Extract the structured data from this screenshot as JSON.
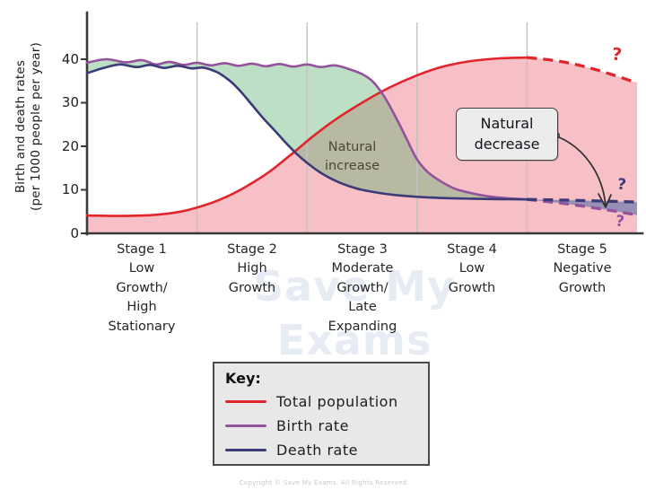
{
  "colors": {
    "total-population": "#e2242c",
    "birth-rate": "#94519c",
    "death-rate": "#3b3b77",
    "pink-fill": "rgba(235,90,105,0.38)",
    "green-fill": "rgba(90,175,110,0.40)",
    "wedge-fill": "rgba(125,130,178,0.80)",
    "gridline": "#c2c2c2",
    "axis": "#3a3a3a",
    "annotation-box-bg": "#ececec",
    "annotation-box-border": "#3f3f3f",
    "natural-increase-text": "#4c4636",
    "watermark": "rgba(195,208,228,0.40)",
    "key-bg": "#e8e8e8",
    "key-border": "#4a4a4a",
    "copyright": "#c9c9c9"
  },
  "chart_data": {
    "type": "line",
    "ylabel": "Birth and death rates\n(per 1000 people per year)",
    "y_tick_labels": [
      "40",
      "30",
      "20",
      "10",
      "0"
    ],
    "y_tick_values": [
      0,
      10,
      20,
      30,
      40
    ],
    "ylim": [
      0,
      45
    ],
    "x_axis": "time (5 demographic transition stages, equal widths, x given as fraction 0-1 of plot width)",
    "stage_boundaries": [
      0.2,
      0.4,
      0.6,
      0.8
    ],
    "grid": "vertical stage-divider lines only",
    "series": {
      "total_population": {
        "name": "Total population",
        "solid": [
          [
            0,
            4.1
          ],
          [
            0.06,
            4.0
          ],
          [
            0.12,
            4.2
          ],
          [
            0.17,
            5.0
          ],
          [
            0.21,
            6.3
          ],
          [
            0.25,
            8.2
          ],
          [
            0.29,
            10.8
          ],
          [
            0.33,
            14.0
          ],
          [
            0.37,
            18.0
          ],
          [
            0.41,
            22.2
          ],
          [
            0.45,
            26.0
          ],
          [
            0.5,
            30.0
          ],
          [
            0.55,
            33.5
          ],
          [
            0.6,
            36.3
          ],
          [
            0.65,
            38.4
          ],
          [
            0.7,
            39.6
          ],
          [
            0.75,
            40.2
          ],
          [
            0.8,
            40.4
          ]
        ],
        "dashed": [
          [
            0.8,
            40.4
          ],
          [
            0.86,
            39.5
          ],
          [
            0.92,
            37.8
          ],
          [
            1.0,
            34.6
          ]
        ]
      },
      "birth_rate": {
        "name": "Birth rate",
        "solid": [
          [
            0,
            39.2
          ],
          [
            0.035,
            40.0
          ],
          [
            0.07,
            39.3
          ],
          [
            0.1,
            39.8
          ],
          [
            0.125,
            38.8
          ],
          [
            0.15,
            39.4
          ],
          [
            0.175,
            38.7
          ],
          [
            0.2,
            39.2
          ],
          [
            0.225,
            38.6
          ],
          [
            0.25,
            39.1
          ],
          [
            0.275,
            38.5
          ],
          [
            0.3,
            39.0
          ],
          [
            0.325,
            38.4
          ],
          [
            0.35,
            38.9
          ],
          [
            0.375,
            38.3
          ],
          [
            0.4,
            38.8
          ],
          [
            0.425,
            38.2
          ],
          [
            0.45,
            38.6
          ],
          [
            0.475,
            37.8
          ],
          [
            0.5,
            36.6
          ],
          [
            0.52,
            34.8
          ],
          [
            0.54,
            31.5
          ],
          [
            0.56,
            27.0
          ],
          [
            0.58,
            22.0
          ],
          [
            0.6,
            17.0
          ],
          [
            0.62,
            14.0
          ],
          [
            0.645,
            11.8
          ],
          [
            0.67,
            10.2
          ],
          [
            0.7,
            9.2
          ],
          [
            0.73,
            8.5
          ],
          [
            0.76,
            8.1
          ],
          [
            0.8,
            7.8
          ]
        ],
        "dashed": [
          [
            0.8,
            7.8
          ],
          [
            0.87,
            6.8
          ],
          [
            0.94,
            5.5
          ],
          [
            1.0,
            4.2
          ]
        ]
      },
      "death_rate": {
        "name": "Death rate",
        "solid": [
          [
            0,
            36.8
          ],
          [
            0.03,
            38.0
          ],
          [
            0.06,
            38.8
          ],
          [
            0.09,
            38.2
          ],
          [
            0.115,
            38.7
          ],
          [
            0.14,
            38.0
          ],
          [
            0.165,
            38.5
          ],
          [
            0.19,
            37.9
          ],
          [
            0.21,
            38.1
          ],
          [
            0.225,
            37.6
          ],
          [
            0.24,
            36.8
          ],
          [
            0.26,
            35.0
          ],
          [
            0.28,
            32.5
          ],
          [
            0.3,
            29.5
          ],
          [
            0.32,
            26.5
          ],
          [
            0.34,
            23.8
          ],
          [
            0.36,
            21.0
          ],
          [
            0.38,
            18.4
          ],
          [
            0.4,
            16.2
          ],
          [
            0.42,
            14.3
          ],
          [
            0.44,
            12.8
          ],
          [
            0.46,
            11.6
          ],
          [
            0.48,
            10.7
          ],
          [
            0.5,
            10.0
          ],
          [
            0.53,
            9.3
          ],
          [
            0.56,
            8.8
          ],
          [
            0.6,
            8.4
          ],
          [
            0.65,
            8.1
          ],
          [
            0.7,
            7.95
          ],
          [
            0.75,
            7.85
          ],
          [
            0.8,
            7.8
          ]
        ],
        "dashed": [
          [
            0.8,
            7.8
          ],
          [
            0.88,
            7.6
          ],
          [
            1.0,
            7.2
          ]
        ]
      }
    },
    "areas": {
      "population": "shaded pink under Total population curve",
      "natural_increase": "shaded green between Birth rate and Death rate (solid portion)",
      "natural_decrease": "shaded blue-grey wedge between dashed Death rate and dashed Birth rate in Stage 5"
    }
  },
  "stages": [
    {
      "title": "Stage 1",
      "desc": "Low\nGrowth/\nHigh\nStationary"
    },
    {
      "title": "Stage 2",
      "desc": "High\nGrowth"
    },
    {
      "title": "Stage 3",
      "desc": "Moderate\nGrowth/\nLate\nExpanding"
    },
    {
      "title": "Stage 4",
      "desc": "Low\nGrowth"
    },
    {
      "title": "Stage 5",
      "desc": "Negative\nGrowth"
    }
  ],
  "annotations": {
    "natural_increase": "Natural\nincrease",
    "natural_decrease": "Natural\ndecrease",
    "question_mark_total_population": "?",
    "question_mark_death_rate": "?",
    "question_mark_birth_rate": "?"
  },
  "key": {
    "title": "Key:",
    "entries": [
      {
        "label": "Total population",
        "series": "total_population"
      },
      {
        "label": "Birth rate",
        "series": "birth_rate"
      },
      {
        "label": "Death rate",
        "series": "death_rate"
      }
    ]
  },
  "watermark": {
    "line1": "Save My",
    "line2": "Exams"
  },
  "footer": {
    "copyright": "Copyright © Save My Exams. All Rights Reserved"
  }
}
